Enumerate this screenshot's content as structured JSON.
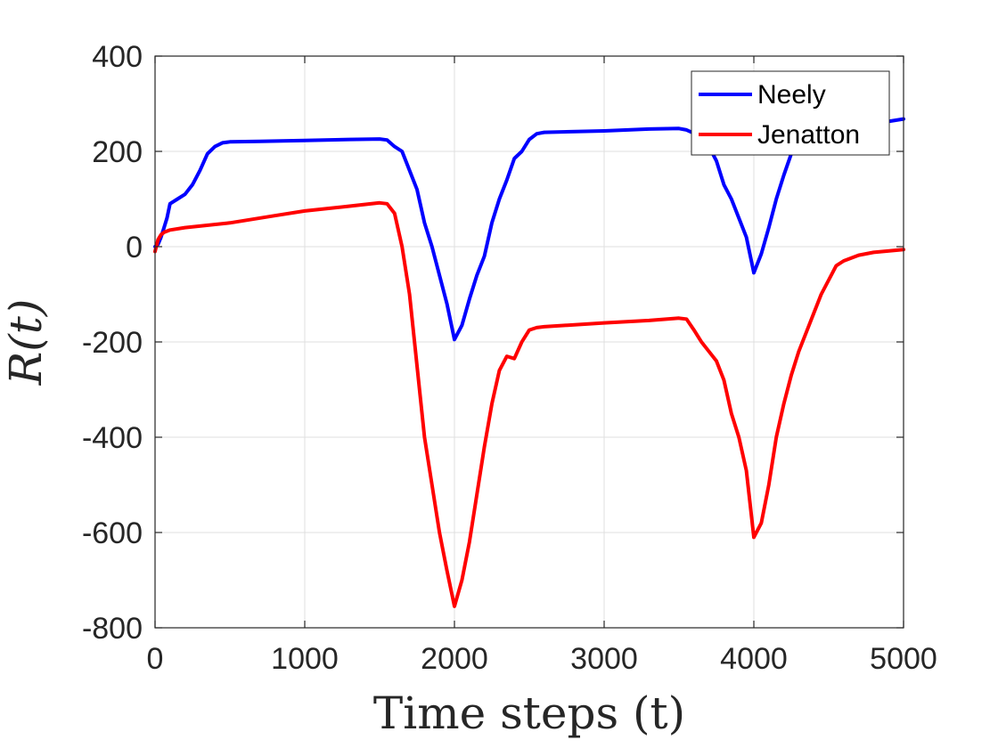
{
  "chart_data": {
    "type": "line",
    "title": "",
    "xlabel": "Time steps (t)",
    "ylabel": "R(t)",
    "xlim": [
      0,
      5000
    ],
    "ylim": [
      -800,
      400
    ],
    "xticks": [
      0,
      1000,
      2000,
      3000,
      4000,
      5000
    ],
    "yticks": [
      400,
      200,
      0,
      -200,
      -400,
      -600,
      -800
    ],
    "xtick_labels": [
      "0",
      "1000",
      "2000",
      "3000",
      "4000",
      "5000"
    ],
    "ytick_labels": [
      "400",
      "200",
      "0",
      "-200",
      "-400",
      "-600",
      "-800"
    ],
    "grid": true,
    "legend_position": "top-right",
    "colors": {
      "Neely": "#0000ff",
      "Jenatton": "#ff0000"
    },
    "series": [
      {
        "name": "Neely",
        "x": [
          0,
          20,
          40,
          60,
          80,
          100,
          150,
          200,
          250,
          300,
          350,
          400,
          450,
          500,
          700,
          1000,
          1300,
          1500,
          1550,
          1600,
          1650,
          1700,
          1750,
          1800,
          1850,
          1900,
          1950,
          2000,
          2050,
          2100,
          2150,
          2200,
          2250,
          2300,
          2350,
          2400,
          2450,
          2500,
          2550,
          2600,
          3000,
          3300,
          3500,
          3550,
          3600,
          3650,
          3700,
          3750,
          3800,
          3850,
          3900,
          3950,
          4000,
          4050,
          4100,
          4150,
          4200,
          4250,
          4300,
          4400,
          4600,
          4800,
          5000
        ],
        "y": [
          0,
          5,
          20,
          40,
          60,
          90,
          100,
          110,
          130,
          160,
          195,
          210,
          218,
          220,
          221,
          223,
          225,
          226,
          224,
          210,
          200,
          160,
          120,
          50,
          0,
          -60,
          -120,
          -195,
          -165,
          -110,
          -60,
          -20,
          50,
          100,
          140,
          185,
          200,
          225,
          237,
          240,
          243,
          247,
          248,
          245,
          238,
          230,
          210,
          180,
          130,
          100,
          60,
          20,
          -55,
          -15,
          40,
          100,
          150,
          195,
          215,
          230,
          245,
          258,
          268
        ]
      },
      {
        "name": "Jenatton",
        "x": [
          0,
          20,
          40,
          60,
          100,
          200,
          500,
          800,
          1000,
          1300,
          1500,
          1550,
          1600,
          1650,
          1700,
          1750,
          1800,
          1850,
          1900,
          1950,
          2000,
          2050,
          2100,
          2150,
          2200,
          2250,
          2300,
          2350,
          2400,
          2450,
          2500,
          2550,
          2600,
          3000,
          3300,
          3500,
          3550,
          3600,
          3650,
          3700,
          3750,
          3800,
          3850,
          3900,
          3950,
          4000,
          4050,
          4100,
          4150,
          4200,
          4250,
          4300,
          4350,
          4400,
          4450,
          4500,
          4550,
          4600,
          4700,
          4800,
          5000
        ],
        "y": [
          -10,
          15,
          25,
          30,
          35,
          40,
          50,
          65,
          75,
          85,
          92,
          90,
          70,
          0,
          -100,
          -250,
          -400,
          -500,
          -600,
          -680,
          -755,
          -700,
          -620,
          -520,
          -420,
          -330,
          -260,
          -230,
          -235,
          -200,
          -175,
          -170,
          -168,
          -160,
          -155,
          -150,
          -152,
          -175,
          -200,
          -220,
          -240,
          -280,
          -350,
          -400,
          -470,
          -610,
          -580,
          -500,
          -400,
          -330,
          -270,
          -220,
          -180,
          -140,
          -100,
          -70,
          -40,
          -30,
          -18,
          -12,
          -6
        ]
      }
    ]
  }
}
